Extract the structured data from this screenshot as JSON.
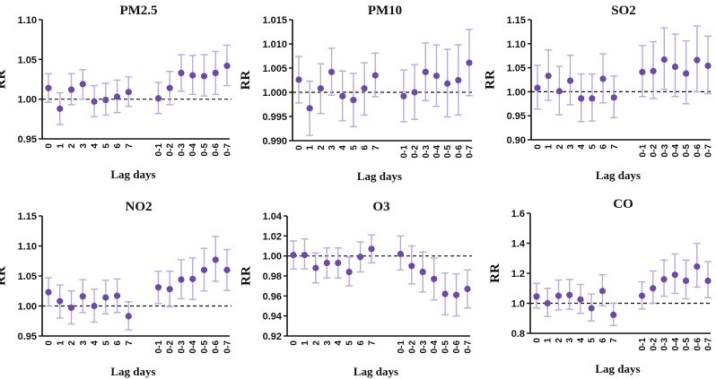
{
  "chart_data": [
    {
      "type": "scatter",
      "title": "PM2.5",
      "title_main": "PM",
      "title_sub": "2.5",
      "xlabel": "Lag days",
      "ylabel": "RR",
      "ylim": [
        0.95,
        1.1
      ],
      "yticks": [
        "0.95",
        "1.00",
        "1.05",
        "1.10"
      ],
      "reference_line": 1.0,
      "categories": [
        "0",
        "1",
        "2",
        "3",
        "4",
        "5",
        "6",
        "7",
        "0-1",
        "0-2",
        "0-3",
        "0-4",
        "0-5",
        "0-6",
        "0-7"
      ],
      "rr": [
        1.014,
        0.988,
        1.012,
        1.019,
        0.997,
        0.999,
        1.003,
        1.009,
        1.001,
        1.014,
        1.033,
        1.03,
        1.029,
        1.033,
        1.042
      ],
      "lower": [
        0.996,
        0.968,
        0.993,
        1.0,
        0.978,
        0.98,
        0.983,
        0.991,
        0.982,
        0.993,
        1.01,
        1.006,
        1.004,
        1.006,
        1.017
      ],
      "upper": [
        1.032,
        1.008,
        1.032,
        1.037,
        1.017,
        1.02,
        1.024,
        1.028,
        1.021,
        1.035,
        1.056,
        1.055,
        1.056,
        1.06,
        1.068
      ]
    },
    {
      "type": "scatter",
      "title": "PM10",
      "title_main": "PM",
      "title_sub": "10",
      "xlabel": "Lag days",
      "ylabel": "RR",
      "ylim": [
        0.99,
        1.015
      ],
      "yticks": [
        "0.990",
        "0.995",
        "1.000",
        "1.005",
        "1.010",
        "1.015"
      ],
      "reference_line": 1.0,
      "categories": [
        "0",
        "1",
        "2",
        "3",
        "4",
        "5",
        "6",
        "7",
        "0-1",
        "0-2",
        "0-3",
        "0-4",
        "0-5",
        "0-6",
        "0-7"
      ],
      "rr": [
        1.0026,
        0.9967,
        1.0008,
        1.0042,
        0.9992,
        0.9984,
        1.0008,
        1.0035,
        0.9992,
        1.0,
        1.0042,
        1.0034,
        1.0018,
        1.0025,
        1.0061
      ],
      "lower": [
        0.9978,
        0.9911,
        0.9956,
        0.9994,
        0.9941,
        0.9929,
        0.9953,
        0.9991,
        0.9939,
        0.9944,
        0.9983,
        0.9971,
        0.9949,
        0.9953,
        0.9993
      ],
      "upper": [
        1.0074,
        1.0023,
        1.0059,
        1.0091,
        1.0044,
        1.0039,
        1.0061,
        1.0081,
        1.0046,
        1.0057,
        1.0102,
        1.0098,
        1.0089,
        1.0098,
        1.013
      ]
    },
    {
      "type": "scatter",
      "title": "SO2",
      "title_main": "SO",
      "title_sub": "2",
      "xlabel": "Lag days",
      "ylabel": "RR",
      "ylim": [
        0.9,
        1.15
      ],
      "yticks": [
        "0.90",
        "0.95",
        "1.00",
        "1.05",
        "1.10",
        "1.15"
      ],
      "reference_line": 1.0,
      "categories": [
        "0",
        "1",
        "2",
        "3",
        "4",
        "5",
        "6",
        "7",
        "0-1",
        "0-2",
        "0-3",
        "0-4",
        "0-5",
        "0-6",
        "0-7"
      ],
      "rr": [
        1.008,
        1.033,
        1.001,
        1.023,
        0.986,
        0.986,
        1.027,
        0.988,
        1.041,
        1.043,
        1.067,
        1.052,
        1.038,
        1.066,
        1.054
      ],
      "lower": [
        0.964,
        0.982,
        0.952,
        0.973,
        0.938,
        0.939,
        0.977,
        0.946,
        0.99,
        0.986,
        1.005,
        0.99,
        0.975,
        1.0,
        0.996
      ],
      "upper": [
        1.055,
        1.087,
        1.053,
        1.076,
        1.037,
        1.037,
        1.079,
        1.033,
        1.096,
        1.104,
        1.133,
        1.12,
        1.106,
        1.137,
        1.116
      ]
    },
    {
      "type": "scatter",
      "title": "NO2",
      "title_main": "NO",
      "title_sub": "2",
      "xlabel": "Lag days",
      "ylabel": "RR",
      "ylim": [
        0.95,
        1.15
      ],
      "yticks": [
        "0.95",
        "1.00",
        "1.05",
        "1.10",
        "1.15"
      ],
      "reference_line": 1.0,
      "categories": [
        "0",
        "1",
        "2",
        "3",
        "4",
        "5",
        "6",
        "7",
        "0-1",
        "0-2",
        "0-3",
        "0-4",
        "0-5",
        "0-6",
        "0-7"
      ],
      "rr": [
        1.023,
        1.008,
        0.997,
        1.016,
        1.0,
        1.014,
        1.017,
        0.983,
        1.031,
        1.028,
        1.044,
        1.045,
        1.06,
        1.077,
        1.06
      ],
      "lower": [
        1.0,
        0.98,
        0.97,
        0.989,
        0.973,
        0.987,
        0.989,
        0.96,
        1.004,
        0.999,
        1.012,
        1.011,
        1.025,
        1.041,
        1.026
      ],
      "upper": [
        1.047,
        1.035,
        1.025,
        1.044,
        1.028,
        1.043,
        1.045,
        1.007,
        1.058,
        1.058,
        1.077,
        1.08,
        1.096,
        1.116,
        1.094
      ]
    },
    {
      "type": "scatter",
      "title": "O3",
      "title_main": "O",
      "title_sub": "3",
      "xlabel": "Lag days",
      "ylabel": "RR",
      "ylim": [
        0.92,
        1.04
      ],
      "yticks": [
        "0.92",
        "0.94",
        "0.96",
        "0.98",
        "1.00",
        "1.02",
        "1.04"
      ],
      "reference_line": 1.0,
      "categories": [
        "0",
        "1",
        "2",
        "3",
        "4",
        "5",
        "6",
        "7",
        "0-1",
        "0-2",
        "0-3",
        "0-4",
        "0-5",
        "0-6",
        "0-7"
      ],
      "rr": [
        1.001,
        1.001,
        0.988,
        0.993,
        0.993,
        0.984,
        0.999,
        1.007,
        1.002,
        0.99,
        0.984,
        0.977,
        0.962,
        0.961,
        0.967
      ],
      "lower": [
        0.987,
        0.987,
        0.973,
        0.978,
        0.978,
        0.97,
        0.984,
        0.993,
        0.986,
        0.972,
        0.964,
        0.956,
        0.941,
        0.94,
        0.948
      ],
      "upper": [
        1.015,
        1.017,
        1.003,
        1.008,
        1.008,
        0.999,
        1.014,
        1.021,
        1.02,
        1.01,
        1.004,
        0.998,
        0.983,
        0.982,
        0.986
      ]
    },
    {
      "type": "scatter",
      "title": "CO",
      "title_main": "CO",
      "title_sub": "",
      "xlabel": "Lag days",
      "ylabel": "RR",
      "ylim": [
        0.8,
        1.6
      ],
      "yticks": [
        "0.8",
        "1.0",
        "1.2",
        "1.4",
        "1.6"
      ],
      "reference_line": 1.0,
      "categories": [
        "0",
        "1",
        "2",
        "3",
        "4",
        "5",
        "6",
        "7",
        "0-1",
        "0-2",
        "0-3",
        "0-4",
        "0-5",
        "0-6",
        "0-7"
      ],
      "rr": [
        1.045,
        1.0,
        1.05,
        1.055,
        1.025,
        0.967,
        1.082,
        0.923,
        1.05,
        1.1,
        1.16,
        1.19,
        1.15,
        1.245,
        1.15
      ],
      "lower": [
        0.968,
        0.912,
        0.956,
        0.96,
        0.933,
        0.882,
        0.984,
        0.852,
        0.962,
        1.0,
        1.047,
        1.066,
        1.03,
        1.108,
        1.037
      ],
      "upper": [
        1.133,
        1.1,
        1.155,
        1.16,
        1.125,
        1.062,
        1.19,
        1.0,
        1.143,
        1.215,
        1.288,
        1.328,
        1.288,
        1.398,
        1.278
      ]
    }
  ],
  "colors": {
    "point": "#6a4aa5",
    "errorbar": "#b9aad9",
    "axis": "#111111"
  }
}
